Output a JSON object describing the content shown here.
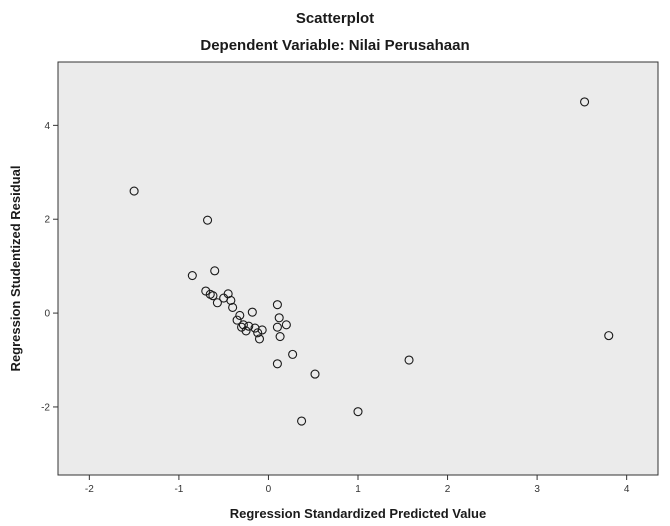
{
  "chart_data": {
    "type": "scatter",
    "title": "Scatterplot",
    "subtitle": "Dependent Variable: Nilai Perusahaan",
    "xlabel": "Regression Standardized Predicted Value",
    "ylabel": "Regression Studentized Residual",
    "xlim": [
      -2.35,
      4.35
    ],
    "ylim": [
      -3.45,
      5.35
    ],
    "x_ticks": [
      "-2",
      "-1",
      "0",
      "1",
      "2",
      "3",
      "4"
    ],
    "y_ticks": [
      "-2",
      "0",
      "2",
      "4"
    ],
    "grid": false,
    "plot_background": "#ebebeb",
    "marker_color": "#1a1a1a",
    "points": [
      {
        "x": -1.5,
        "y": 2.6
      },
      {
        "x": -0.68,
        "y": 1.98
      },
      {
        "x": -0.6,
        "y": 0.9
      },
      {
        "x": -0.85,
        "y": 0.8
      },
      {
        "x": -0.7,
        "y": 0.47
      },
      {
        "x": -0.65,
        "y": 0.4
      },
      {
        "x": -0.62,
        "y": 0.37
      },
      {
        "x": -0.57,
        "y": 0.22
      },
      {
        "x": -0.5,
        "y": 0.32
      },
      {
        "x": -0.45,
        "y": 0.41
      },
      {
        "x": -0.42,
        "y": 0.27
      },
      {
        "x": -0.4,
        "y": 0.12
      },
      {
        "x": -0.35,
        "y": -0.15
      },
      {
        "x": -0.32,
        "y": -0.05
      },
      {
        "x": -0.3,
        "y": -0.3
      },
      {
        "x": -0.28,
        "y": -0.25
      },
      {
        "x": -0.25,
        "y": -0.38
      },
      {
        "x": -0.22,
        "y": -0.28
      },
      {
        "x": -0.18,
        "y": 0.02
      },
      {
        "x": -0.15,
        "y": -0.32
      },
      {
        "x": -0.12,
        "y": -0.42
      },
      {
        "x": -0.1,
        "y": -0.55
      },
      {
        "x": -0.07,
        "y": -0.36
      },
      {
        "x": 0.1,
        "y": 0.18
      },
      {
        "x": 0.12,
        "y": -0.1
      },
      {
        "x": 0.1,
        "y": -0.3
      },
      {
        "x": 0.13,
        "y": -0.5
      },
      {
        "x": 0.2,
        "y": -0.25
      },
      {
        "x": 0.27,
        "y": -0.88
      },
      {
        "x": 0.1,
        "y": -1.08
      },
      {
        "x": 0.52,
        "y": -1.3
      },
      {
        "x": 0.37,
        "y": -2.3
      },
      {
        "x": 1.0,
        "y": -2.1
      },
      {
        "x": 1.57,
        "y": -1.0
      },
      {
        "x": 3.53,
        "y": 4.5
      },
      {
        "x": 3.8,
        "y": -0.48
      }
    ]
  }
}
